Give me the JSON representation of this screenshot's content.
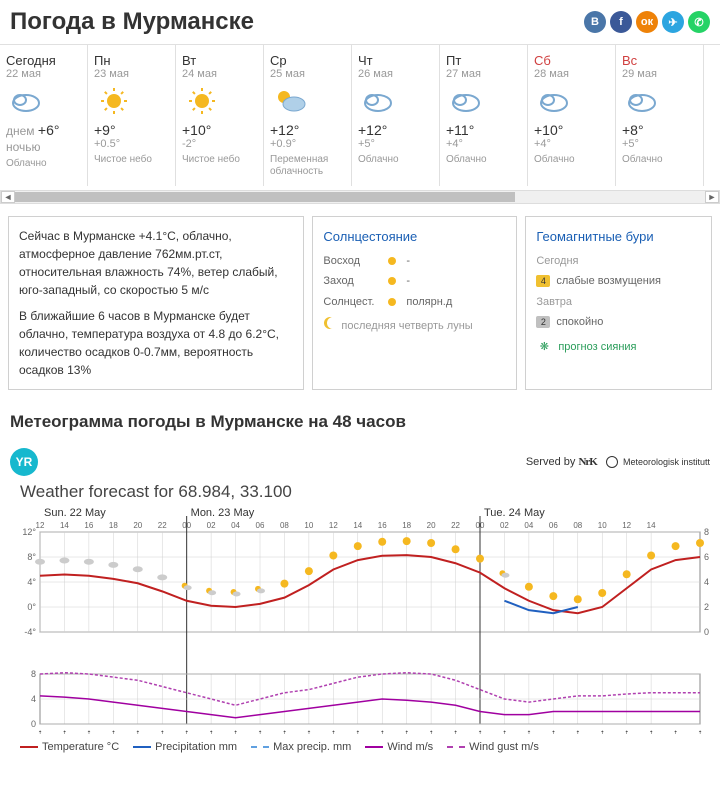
{
  "header": {
    "title": "Погода в Мурманске"
  },
  "social_colors": [
    "#4a76a8",
    "#3b5998",
    "#ee8208",
    "#2ca5e0",
    "#25d366"
  ],
  "social_names": [
    "vk-icon",
    "fb-icon",
    "ok-icon",
    "tg-icon",
    "wa-icon"
  ],
  "social_glyphs": [
    "В",
    "f",
    "ок",
    "✈",
    "✆"
  ],
  "days": [
    {
      "name": "Сегодня",
      "date": "22 мая",
      "weekend": false,
      "icon": "cloud",
      "t1_label": "днем",
      "t1": "+6°",
      "t2_label": "ночью",
      "t2": "",
      "cond": "Облачно"
    },
    {
      "name": "Пн",
      "date": "23 мая",
      "weekend": false,
      "icon": "sun",
      "t1": "+9°",
      "t2": "+0.5°",
      "cond": "Чистое небо"
    },
    {
      "name": "Вт",
      "date": "24 мая",
      "weekend": false,
      "icon": "sun",
      "t1": "+10°",
      "t2": "-2°",
      "cond": "Чистое небо"
    },
    {
      "name": "Ср",
      "date": "25 мая",
      "weekend": false,
      "icon": "partly",
      "t1": "+12°",
      "t2": "+0.9°",
      "cond": "Переменная облачность"
    },
    {
      "name": "Чт",
      "date": "26 мая",
      "weekend": false,
      "icon": "cloud",
      "t1": "+12°",
      "t2": "+5°",
      "cond": "Облачно"
    },
    {
      "name": "Пт",
      "date": "27 мая",
      "weekend": false,
      "icon": "cloud",
      "t1": "+11°",
      "t2": "+4°",
      "cond": "Облачно"
    },
    {
      "name": "Сб",
      "date": "28 мая",
      "weekend": true,
      "icon": "cloud",
      "t1": "+10°",
      "t2": "+4°",
      "cond": "Облачно"
    },
    {
      "name": "Вс",
      "date": "29 мая",
      "weekend": true,
      "icon": "cloud",
      "t1": "+8°",
      "t2": "+5°",
      "cond": "Облачно"
    }
  ],
  "now": {
    "p1": "Сейчас в Мурманске +4.1°С, облачно, атмосферное давление 762мм.рт.ст, относительная влажность 74%, ветер слабый, юго-западный, со скоростью 5 м/с",
    "p2": "В ближайшие 6 часов в Мурманске будет облачно, температура воздуха от 4.8 до 6.2°С, количество осадков 0-0.7мм, вероятность осадков 13%"
  },
  "sun": {
    "title": "Солнцестояние",
    "rows": [
      {
        "label": "Восход",
        "val": "-"
      },
      {
        "label": "Заход",
        "val": "-"
      },
      {
        "label": "Солнцест.",
        "val": "полярн.д"
      }
    ],
    "moon": "последняя четверть луны"
  },
  "geo": {
    "title": "Геомагнитные бури",
    "rows": [
      {
        "day": "Сегодня",
        "badge": "4",
        "badge_color": "#f0c030",
        "text": "слабые возмущения"
      },
      {
        "day": "Завтра",
        "badge": "2",
        "badge_color": "#c0c0c0",
        "text": "спокойно"
      }
    ],
    "link": "прогноз сияния"
  },
  "meteo": {
    "title": "Метеограмма погоды в Мурманске на 48 часов",
    "served": "Served by",
    "nrk": "NrK",
    "inst": "Meteorologisk institutt",
    "forecast_for": "Weather forecast for 68.984, 33.100",
    "day_labels": [
      "Sun. 22 May",
      "Mon. 23 May",
      "Tue. 24 May"
    ],
    "hours": [
      "12",
      "14",
      "16",
      "18",
      "20",
      "22",
      "00",
      "02",
      "04",
      "06",
      "08",
      "10",
      "12",
      "14",
      "16",
      "18",
      "20",
      "22",
      "00",
      "02",
      "04",
      "06",
      "08",
      "10",
      "12",
      "14"
    ],
    "y_ticks_top": [
      12,
      8,
      4,
      0,
      -4
    ],
    "y_ticks_right": [
      8,
      6,
      4,
      2,
      0
    ],
    "y_ticks_wind": [
      8,
      4,
      0
    ],
    "temp_series": [
      5,
      5.2,
      5,
      4.5,
      3.8,
      2.5,
      1,
      0.2,
      0,
      0.5,
      1.5,
      3.5,
      6,
      7.5,
      8.2,
      8.3,
      8,
      7,
      5.5,
      3,
      1,
      -0.5,
      -1,
      0,
      3,
      6,
      7.5,
      8
    ],
    "temp_color": "#c02020",
    "precip_color": "#2060c0",
    "wind_series": [
      4.5,
      4.3,
      4,
      3.5,
      3,
      2.5,
      2,
      1.5,
      1,
      1.5,
      2,
      2.5,
      3,
      3.5,
      4,
      3.8,
      3.5,
      3,
      2,
      1.5,
      1.5,
      2,
      2,
      2,
      2,
      2,
      2,
      2
    ],
    "gust_series": [
      8,
      8.2,
      8,
      7.5,
      7,
      6,
      5,
      4,
      3,
      4,
      5,
      5.5,
      6.5,
      7.5,
      8,
      8.2,
      8,
      7,
      5.5,
      4,
      3.5,
      4,
      4.5,
      4.5,
      4.8,
      5,
      5,
      5
    ],
    "wind_color": "#a000a0",
    "gust_color": "#b040b0",
    "icon_seq": [
      "c",
      "c",
      "c",
      "c",
      "c",
      "c",
      "p",
      "p",
      "p",
      "p",
      "s",
      "s",
      "s",
      "s",
      "s",
      "s",
      "s",
      "s",
      "s",
      "p",
      "s",
      "s",
      "s",
      "s",
      "s",
      "s",
      "s",
      "s"
    ],
    "legend": [
      {
        "style": "line",
        "color": "#c02020",
        "label": "Temperature °C"
      },
      {
        "style": "line",
        "color": "#2060c0",
        "label": "Precipitation mm"
      },
      {
        "style": "dash",
        "color": "#60a0e0",
        "label": "Max precip. mm"
      },
      {
        "style": "line",
        "color": "#a000a0",
        "label": "Wind m/s"
      },
      {
        "style": "dash",
        "color": "#b040b0",
        "label": "Wind gust m/s"
      }
    ]
  }
}
